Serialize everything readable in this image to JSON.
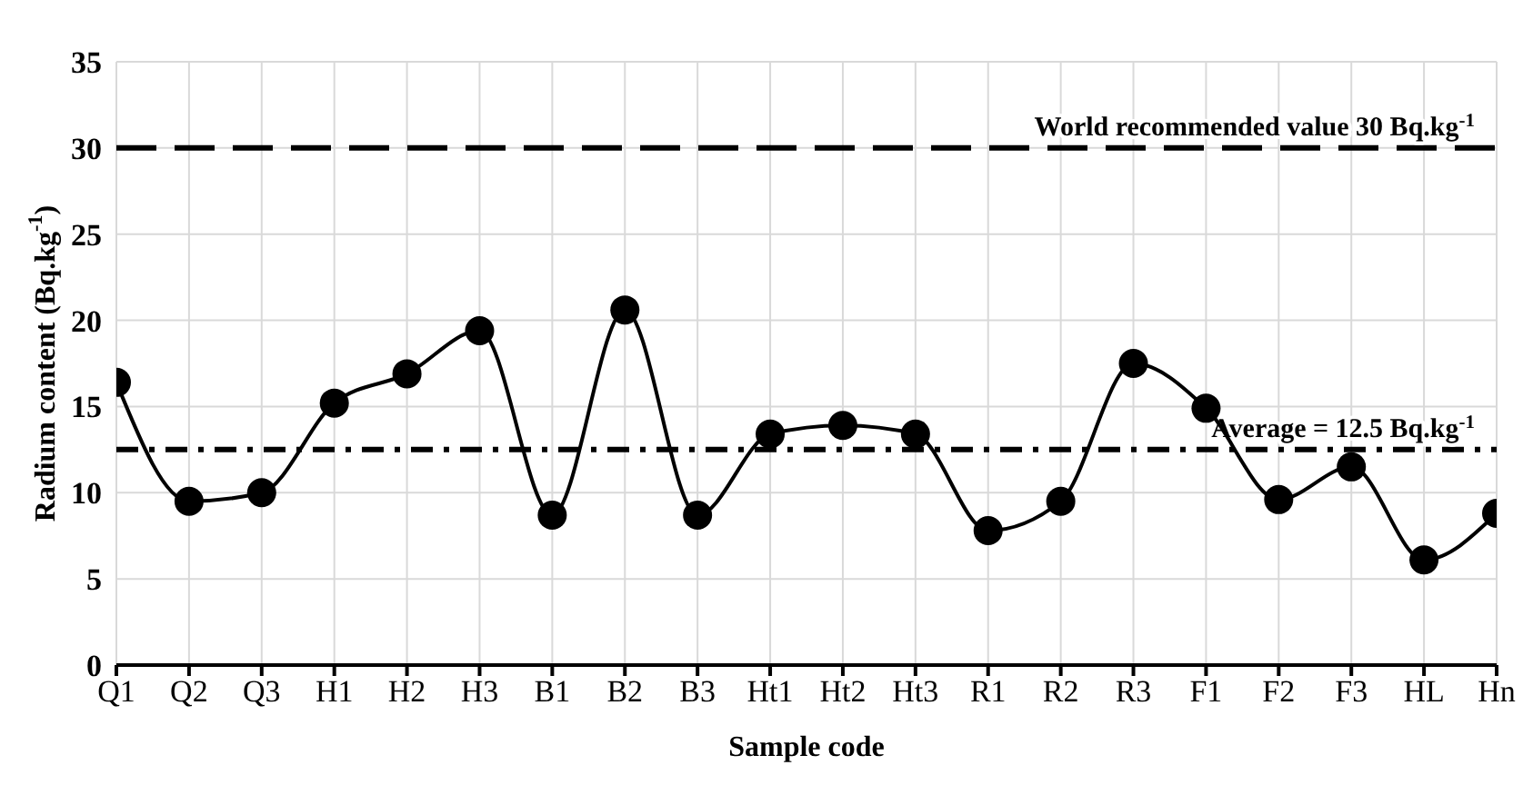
{
  "chart_data": {
    "type": "line",
    "xlabel": "Sample code",
    "ylabel": "Radium content (Bq.kg$^{-1}$)",
    "categories": [
      "Q1",
      "Q2",
      "Q3",
      "H1",
      "H2",
      "H3",
      "B1",
      "B2",
      "B3",
      "Ht1",
      "Ht2",
      "Ht3",
      "R1",
      "R2",
      "R3",
      "F1",
      "F2",
      "F3",
      "HL",
      "Hn"
    ],
    "series": [
      {
        "color": "#000000",
        "values": [
          16.4,
          9.5,
          10.0,
          15.2,
          16.9,
          19.4,
          8.7,
          20.6,
          8.7,
          13.4,
          13.9,
          13.4,
          7.8,
          9.5,
          17.5,
          14.9,
          9.6,
          11.5,
          6.1,
          8.8
        ]
      }
    ],
    "ylim": [
      0,
      35
    ],
    "yticks": [
      0,
      5,
      10,
      15,
      20,
      25,
      30,
      35
    ],
    "grid": true,
    "marker": "circle",
    "line_style": "solid",
    "legend": false,
    "ref_lines": [
      {
        "axis": "y",
        "value": 30,
        "label": "World recommended value 30 Bq.kg$^{-1}$",
        "color": "#000000",
        "line_style": "dashed"
      },
      {
        "axis": "y",
        "value": 12.5,
        "label": "Average = 12.5 Bq.kg$^{-1}$",
        "color": "#000000",
        "line_style": "dotted"
      }
    ]
  }
}
